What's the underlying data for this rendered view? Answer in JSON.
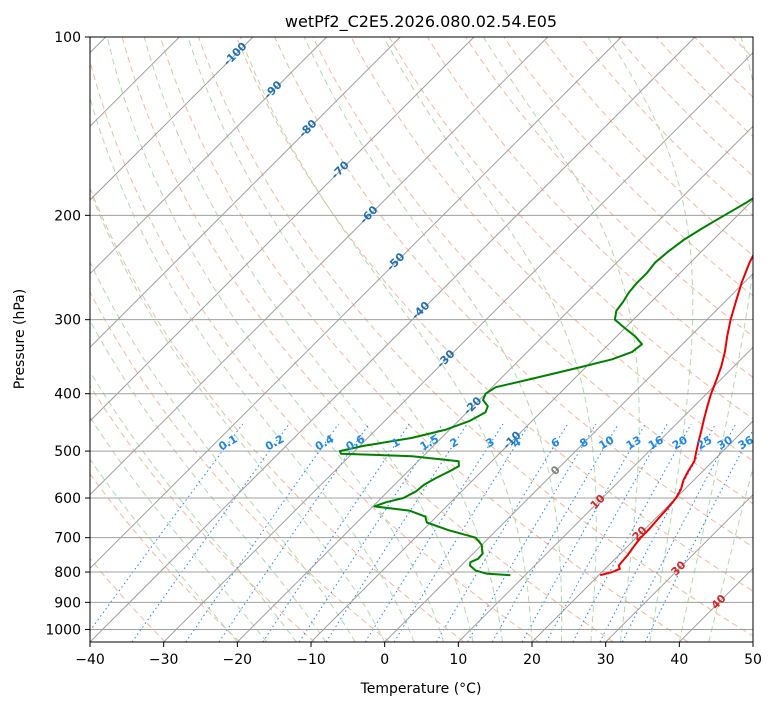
{
  "chart_data": {
    "type": "line",
    "subtype": "skew-t-log-p",
    "title": "wetPf2_C2E5.2026.080.02.54.E05",
    "xlabel": "Temperature (°C)",
    "ylabel": "Pressure (hPa)",
    "xlim": [
      -40,
      50
    ],
    "ylim": [
      1050,
      100
    ],
    "y_scale": "log",
    "grid": true,
    "x_ticks": [
      -40,
      -30,
      -20,
      -10,
      0,
      10,
      20,
      30,
      40,
      50
    ],
    "y_ticks": [
      100,
      200,
      300,
      400,
      500,
      600,
      700,
      800,
      900,
      1000
    ],
    "x_tick_labels": [
      "−40",
      "−30",
      "−20",
      "−10",
      "0",
      "10",
      "20",
      "30",
      "40",
      "50"
    ],
    "y_tick_labels": [
      "100",
      "200",
      "300",
      "400",
      "500",
      "600",
      "700",
      "800",
      "900",
      "1000"
    ],
    "colors": {
      "temperature": "#ee0000",
      "dewpoint": "#008000",
      "isotherm": "#a0a0a0",
      "dry_adiabat": "#f4a582",
      "moist_adiabat": "#a6d7a3",
      "mixing_ratio": "#1e88e5",
      "isotherm_label": "#1f6fb4",
      "dry_adiabat_label": "#d62728"
    },
    "series": [
      {
        "key": "temperature",
        "points": [
          [
            810,
            20.2
          ],
          [
            800,
            21.4
          ],
          [
            790,
            22.0
          ],
          [
            780,
            21.4
          ],
          [
            750,
            21.2
          ],
          [
            720,
            20.8
          ],
          [
            700,
            20.6
          ],
          [
            680,
            20.6
          ],
          [
            650,
            20.4
          ],
          [
            630,
            20.3
          ],
          [
            600,
            20.0
          ],
          [
            580,
            19.5
          ],
          [
            560,
            18.6
          ],
          [
            540,
            18.0
          ],
          [
            520,
            17.5
          ],
          [
            500,
            16.4
          ],
          [
            480,
            15.3
          ],
          [
            460,
            14.2
          ],
          [
            440,
            13.0
          ],
          [
            420,
            11.8
          ],
          [
            400,
            10.6
          ],
          [
            380,
            9.5
          ],
          [
            360,
            8.3
          ],
          [
            340,
            6.8
          ],
          [
            320,
            5.0
          ],
          [
            300,
            3.2
          ],
          [
            280,
            1.5
          ],
          [
            260,
            -0.3
          ],
          [
            240,
            -2.0
          ],
          [
            220,
            -3.5
          ],
          [
            210,
            -4.4
          ],
          [
            200,
            -5.3
          ],
          [
            190,
            -6.1
          ],
          [
            180,
            -6.6
          ],
          [
            170,
            -7.2
          ],
          [
            160,
            -7.8
          ],
          [
            150,
            -8.7
          ],
          [
            140,
            -9.8
          ],
          [
            130,
            -10.7
          ],
          [
            120,
            -11.6
          ],
          [
            112,
            -12.4
          ],
          [
            105,
            -13.7
          ],
          [
            100,
            -15.5
          ]
        ]
      },
      {
        "key": "dewpoint",
        "points": [
          [
            810,
            8.0
          ],
          [
            805,
            4.5
          ],
          [
            795,
            2.6
          ],
          [
            780,
            1.2
          ],
          [
            770,
            0.8
          ],
          [
            760,
            1.4
          ],
          [
            745,
            1.3
          ],
          [
            720,
            0.0
          ],
          [
            700,
            -1.8
          ],
          [
            680,
            -6.5
          ],
          [
            660,
            -10.5
          ],
          [
            645,
            -11.5
          ],
          [
            630,
            -14.5
          ],
          [
            620,
            -19.8
          ],
          [
            610,
            -18.8
          ],
          [
            600,
            -17.0
          ],
          [
            585,
            -16.2
          ],
          [
            570,
            -16.0
          ],
          [
            555,
            -15.3
          ],
          [
            540,
            -14.3
          ],
          [
            530,
            -13.8
          ],
          [
            520,
            -14.5
          ],
          [
            510,
            -21.5
          ],
          [
            505,
            -31.5
          ],
          [
            500,
            -32.0
          ],
          [
            490,
            -29.5
          ],
          [
            475,
            -24.0
          ],
          [
            460,
            -20.5
          ],
          [
            445,
            -18.5
          ],
          [
            430,
            -17.5
          ],
          [
            420,
            -18.0
          ],
          [
            410,
            -19.5
          ],
          [
            400,
            -20.0
          ],
          [
            390,
            -19.5
          ],
          [
            380,
            -16.5
          ],
          [
            370,
            -13.5
          ],
          [
            360,
            -10.5
          ],
          [
            350,
            -7.5
          ],
          [
            340,
            -5.8
          ],
          [
            330,
            -5.5
          ],
          [
            320,
            -7.5
          ],
          [
            310,
            -10.0
          ],
          [
            300,
            -12.5
          ],
          [
            290,
            -13.5
          ],
          [
            280,
            -13.8
          ],
          [
            270,
            -14.3
          ],
          [
            260,
            -14.5
          ],
          [
            250,
            -14.5
          ],
          [
            240,
            -14.8
          ],
          [
            230,
            -14.5
          ],
          [
            220,
            -14.0
          ],
          [
            210,
            -13.0
          ],
          [
            200,
            -11.8
          ],
          [
            190,
            -10.5
          ],
          [
            180,
            -9.5
          ],
          [
            170,
            -8.8
          ],
          [
            160,
            -8.5
          ],
          [
            150,
            -8.0
          ],
          [
            140,
            -6.5
          ],
          [
            130,
            -4.5
          ],
          [
            120,
            -2.5
          ],
          [
            110,
            -1.0
          ],
          [
            100,
            0.5
          ]
        ]
      }
    ],
    "isotherm_labels": [
      -100,
      -90,
      -80,
      -70,
      -60,
      -50,
      -40,
      -30,
      -20,
      -10,
      0,
      10,
      20,
      30,
      40
    ],
    "isotherm_label_text": [
      "-100",
      "-90",
      "-80",
      "-70",
      "-60",
      "-50",
      "-40",
      "-30",
      "-20",
      "-10",
      "0",
      "10",
      "20",
      "30",
      "40"
    ],
    "mixing_ratio_labels": [
      0.1,
      0.2,
      0.4,
      0.6,
      1,
      1.5,
      2,
      3,
      4,
      6,
      8,
      10,
      13,
      16,
      20,
      25,
      30,
      36
    ],
    "mixing_ratio_label_text": [
      "0.1",
      "0.2",
      "0.4",
      "0.6",
      "1",
      "1.5",
      "2",
      "3",
      "4",
      "6",
      "8",
      "10",
      "13",
      "16",
      "20",
      "25",
      "30",
      "36"
    ]
  }
}
